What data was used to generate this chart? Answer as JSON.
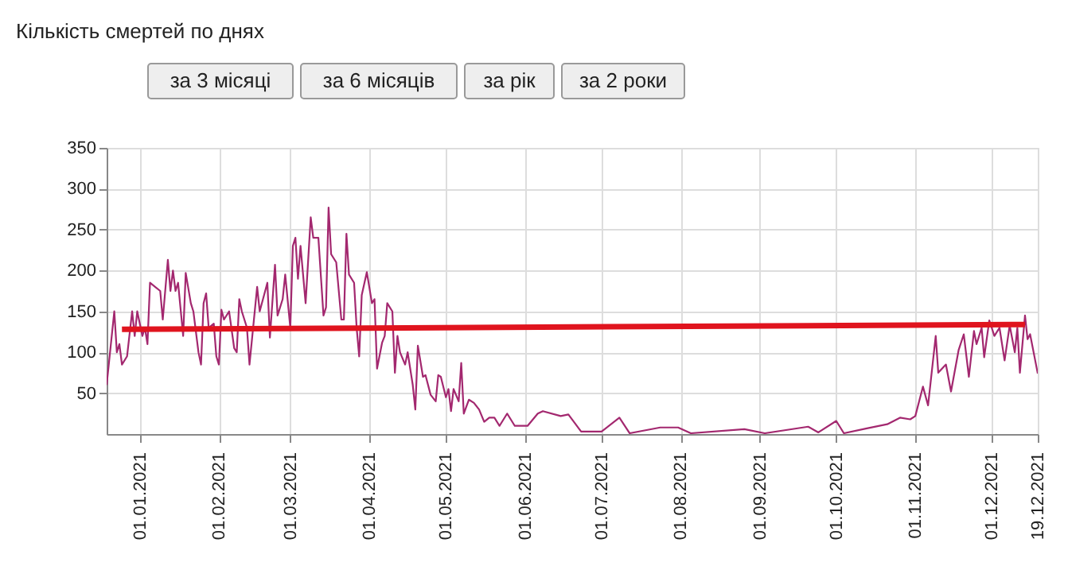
{
  "chart_data": {
    "type": "line",
    "title": "Кількість смертей по днях",
    "annotations": [
      "за 3 місяці",
      "за 6 місяців",
      "за рік",
      "за 2 роки"
    ],
    "xlim": [
      "2020-12-19",
      "2021-12-19"
    ],
    "xticks": [
      {
        "value": "2021-01-01",
        "label": "01.01.2021"
      },
      {
        "value": "2021-02-01",
        "label": "01.02.2021"
      },
      {
        "value": "2021-03-01",
        "label": "01.03.2021"
      },
      {
        "value": "2021-04-01",
        "label": "01.04.2021"
      },
      {
        "value": "2021-05-01",
        "label": "01.05.2021"
      },
      {
        "value": "2021-06-01",
        "label": "01.06.2021"
      },
      {
        "value": "2021-07-01",
        "label": "01.07.2021"
      },
      {
        "value": "2021-08-01",
        "label": "01.08.2021"
      },
      {
        "value": "2021-09-01",
        "label": "01.09.2021"
      },
      {
        "value": "2021-10-01",
        "label": "01.10.2021"
      },
      {
        "value": "2021-11-01",
        "label": "01.11.2021"
      },
      {
        "value": "2021-12-01",
        "label": "01.12.2021"
      },
      {
        "value": "2021-12-19",
        "label": "19.12.2021"
      }
    ],
    "ylim": [
      0,
      350
    ],
    "yticks": [
      50,
      100,
      150,
      200,
      250,
      300,
      350
    ],
    "grid": true,
    "line_style": "solid",
    "series": [
      {
        "color": "#a3286f",
        "x": [
          "2020-12-19",
          "2020-12-22",
          "2020-12-23",
          "2020-12-24",
          "2020-12-25",
          "2020-12-27",
          "2020-12-29",
          "2020-12-30",
          "2020-12-31",
          "2021-01-02",
          "2021-01-03",
          "2021-01-04",
          "2021-01-05",
          "2021-01-07",
          "2021-01-09",
          "2021-01-10",
          "2021-01-12",
          "2021-01-13",
          "2021-01-14",
          "2021-01-15",
          "2021-01-16",
          "2021-01-18",
          "2021-01-19",
          "2021-01-21",
          "2021-01-22",
          "2021-01-24",
          "2021-01-25",
          "2021-01-26",
          "2021-01-27",
          "2021-01-28",
          "2021-01-30",
          "2021-01-31",
          "2021-02-01",
          "2021-02-02",
          "2021-02-03",
          "2021-02-05",
          "2021-02-07",
          "2021-02-08",
          "2021-02-09",
          "2021-02-10",
          "2021-02-12",
          "2021-02-13",
          "2021-02-16",
          "2021-02-17",
          "2021-02-20",
          "2021-02-21",
          "2021-02-23",
          "2021-02-24",
          "2021-02-26",
          "2021-02-27",
          "2021-03-01",
          "2021-03-02",
          "2021-03-03",
          "2021-03-04",
          "2021-03-05",
          "2021-03-07",
          "2021-03-09",
          "2021-03-10",
          "2021-03-12",
          "2021-03-14",
          "2021-03-15",
          "2021-03-16",
          "2021-03-17",
          "2021-03-19",
          "2021-03-21",
          "2021-03-22",
          "2021-03-23",
          "2021-03-24",
          "2021-03-26",
          "2021-03-27",
          "2021-03-28",
          "2021-03-29",
          "2021-03-31",
          "2021-04-02",
          "2021-04-03",
          "2021-04-04",
          "2021-04-06",
          "2021-04-07",
          "2021-04-08",
          "2021-04-10",
          "2021-04-11",
          "2021-04-12",
          "2021-04-13",
          "2021-04-15",
          "2021-04-16",
          "2021-04-18",
          "2021-04-19",
          "2021-04-20",
          "2021-04-22",
          "2021-04-23",
          "2021-04-25",
          "2021-04-27",
          "2021-04-28",
          "2021-04-29",
          "2021-05-01",
          "2021-05-02",
          "2021-05-03",
          "2021-05-04",
          "2021-05-06",
          "2021-05-07",
          "2021-05-08",
          "2021-05-10",
          "2021-05-12",
          "2021-05-14",
          "2021-05-16",
          "2021-05-18",
          "2021-05-20",
          "2021-05-22",
          "2021-05-25",
          "2021-05-28",
          "2021-06-02",
          "2021-06-06",
          "2021-06-08",
          "2021-06-15",
          "2021-06-18",
          "2021-06-23",
          "2021-07-01",
          "2021-07-08",
          "2021-07-12",
          "2021-07-24",
          "2021-07-31",
          "2021-08-05",
          "2021-08-26",
          "2021-09-03",
          "2021-09-20",
          "2021-09-24",
          "2021-10-01",
          "2021-10-04",
          "2021-10-13",
          "2021-10-21",
          "2021-10-26",
          "2021-10-30",
          "2021-11-01",
          "2021-11-04",
          "2021-11-06",
          "2021-11-09",
          "2021-11-10",
          "2021-11-13",
          "2021-11-15",
          "2021-11-18",
          "2021-11-20",
          "2021-11-22",
          "2021-11-24",
          "2021-11-25",
          "2021-11-27",
          "2021-11-28",
          "2021-11-30",
          "2021-12-02",
          "2021-12-04",
          "2021-12-06",
          "2021-12-08",
          "2021-12-10",
          "2021-12-11",
          "2021-12-12",
          "2021-12-14",
          "2021-12-15",
          "2021-12-16",
          "2021-12-19"
        ],
        "values": [
          60,
          150,
          100,
          110,
          85,
          95,
          150,
          120,
          150,
          120,
          130,
          110,
          185,
          180,
          175,
          140,
          213,
          175,
          200,
          175,
          185,
          120,
          197,
          160,
          150,
          100,
          85,
          160,
          172,
          130,
          135,
          95,
          85,
          152,
          140,
          150,
          105,
          100,
          165,
          150,
          130,
          85,
          180,
          150,
          185,
          118,
          207,
          145,
          165,
          195,
          130,
          230,
          240,
          190,
          230,
          160,
          265,
          240,
          240,
          145,
          155,
          277,
          220,
          210,
          140,
          140,
          245,
          195,
          185,
          130,
          95,
          170,
          198,
          160,
          165,
          80,
          112,
          120,
          160,
          150,
          75,
          120,
          100,
          85,
          100,
          60,
          30,
          108,
          70,
          72,
          48,
          40,
          72,
          70,
          45,
          55,
          28,
          55,
          40,
          87,
          25,
          42,
          38,
          30,
          15,
          20,
          20,
          10,
          25,
          10,
          10,
          25,
          28,
          22,
          24,
          3,
          3,
          20,
          1,
          8,
          8,
          1,
          6,
          1,
          9,
          2,
          16,
          1,
          7,
          12,
          20,
          18,
          22,
          58,
          35,
          120,
          75,
          85,
          52,
          103,
          122,
          70,
          126,
          110,
          130,
          94,
          139,
          120,
          130,
          90,
          133,
          100,
          130,
          75,
          145,
          116,
          122,
          74
        ]
      },
      {
        "color": "#e0141e",
        "x": [
          "2020-12-25",
          "2021-12-14"
        ],
        "values": [
          128,
          134
        ]
      }
    ]
  }
}
